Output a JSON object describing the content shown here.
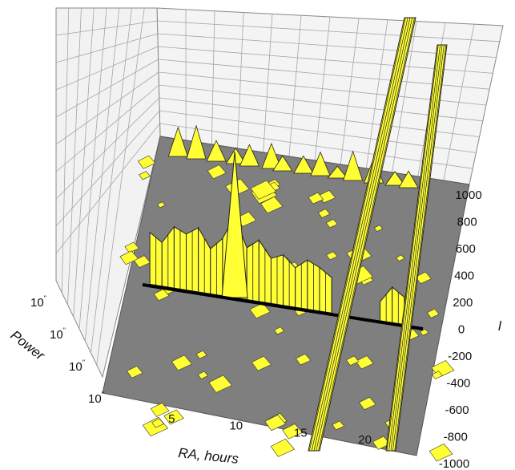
{
  "chart_data": {
    "type": "surface-3d",
    "title": "",
    "xlabel": "RA, hours",
    "ylabel": "Power",
    "zlabel": "l",
    "x_ticks": [
      "5",
      "10",
      "15",
      "20"
    ],
    "x_tick_values": [
      5,
      10,
      15,
      20
    ],
    "xlim": [
      1,
      24
    ],
    "power_ticks": [
      "10",
      "10",
      "10",
      "10"
    ],
    "power_tick_superscripts": [
      "\"",
      "\"",
      "\"",
      "\""
    ],
    "z_ticks": [
      "1000",
      "800",
      "600",
      "400",
      "200",
      "0",
      "-200",
      "-400",
      "-600",
      "-800",
      "-1000"
    ],
    "z_tick_values": [
      1000,
      800,
      600,
      400,
      200,
      0,
      -200,
      -400,
      -600,
      -800,
      -1000
    ],
    "zlim": [
      -1000,
      1000
    ],
    "grid": true,
    "colors": {
      "surface": "#ffff33",
      "surface_edge": "#222222",
      "floor": "#7f7f7f",
      "walls": "#f4f4f4",
      "gridline": "#9a9a9a",
      "zero_line": "#000000"
    },
    "features": [
      {
        "name": "RA",
        "values": [
          2,
          3,
          4,
          5,
          6,
          7,
          8,
          9,
          10,
          11,
          12,
          13,
          14,
          15,
          16,
          17,
          18,
          19,
          20,
          21,
          22,
          23
        ]
      },
      {
        "name": "l",
        "values": [
          380,
          320,
          450,
          410,
          470,
          330,
          420,
          600,
          380,
          450,
          330,
          370,
          290,
          360,
          320,
          260,
          900,
          120,
          900,
          140,
          260,
          200
        ]
      }
    ]
  }
}
